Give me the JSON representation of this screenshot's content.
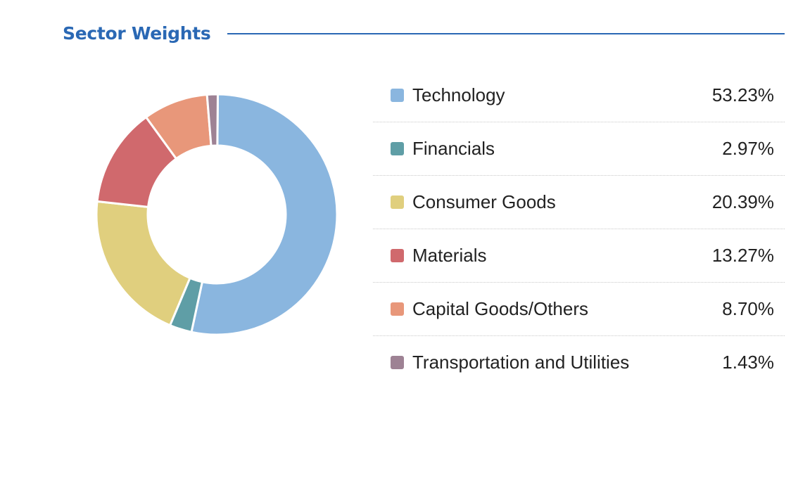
{
  "title": "Sector Weights",
  "chart_data": {
    "type": "pie",
    "variant": "donut",
    "title": "Sector Weights",
    "categories": [
      "Technology",
      "Financials",
      "Consumer Goods",
      "Materials",
      "Capital Goods/Others",
      "Transportation and Utilities"
    ],
    "values": [
      53.23,
      2.97,
      20.39,
      13.27,
      8.7,
      1.43
    ],
    "labels": [
      "53.23%",
      "2.97%",
      "20.39%",
      "13.27%",
      "8.70%",
      "1.43%"
    ],
    "colors": [
      "#8ab6df",
      "#5f9ea6",
      "#e0cf7e",
      "#d0696d",
      "#e8977a",
      "#9e8294"
    ],
    "legend_placement": "right"
  }
}
